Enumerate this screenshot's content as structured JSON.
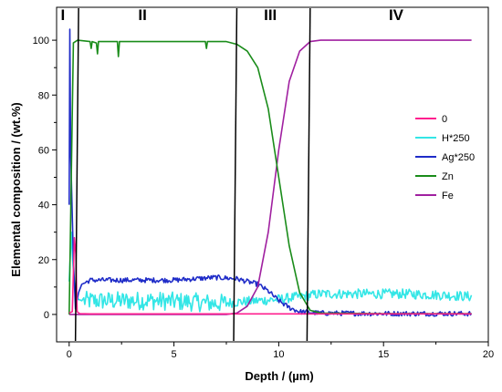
{
  "chart_data": {
    "type": "line",
    "title": "",
    "xlabel": "Depth / (µm)",
    "ylabel": "Elemental composition / (wt.%)",
    "xlim": [
      -0.6,
      20
    ],
    "ylim": [
      -10,
      112
    ],
    "xticks": [
      0,
      5,
      10,
      15,
      20
    ],
    "yticks": [
      0,
      20,
      40,
      60,
      80,
      100
    ],
    "grid": false,
    "legend_position": "right",
    "region_labels": [
      {
        "label": "I",
        "x": -0.3
      },
      {
        "label": "II",
        "x": 3.5
      },
      {
        "label": "III",
        "x": 9.6
      },
      {
        "label": "IV",
        "x": 15.6
      }
    ],
    "boundary_lines": [
      {
        "x1": 0.3,
        "x2": 0.45
      },
      {
        "x1": 7.85,
        "x2": 8.0
      },
      {
        "x1": 11.35,
        "x2": 11.5
      }
    ],
    "series": [
      {
        "name": "0",
        "color": "#ff1f8e",
        "points": [
          [
            0.0,
            0.5
          ],
          [
            0.15,
            1
          ],
          [
            0.25,
            28
          ],
          [
            0.32,
            22
          ],
          [
            0.38,
            1
          ],
          [
            0.5,
            0.3
          ],
          [
            1,
            0.2
          ],
          [
            5,
            0.2
          ],
          [
            10,
            0.2
          ],
          [
            15,
            0.2
          ],
          [
            19.2,
            0.2
          ]
        ]
      },
      {
        "name": "H*250",
        "color": "#33e6e6",
        "noise": true,
        "points": [
          [
            0.0,
            12
          ],
          [
            0.1,
            30
          ],
          [
            0.18,
            18
          ],
          [
            0.3,
            6
          ],
          [
            0.6,
            5
          ],
          [
            2,
            5
          ],
          [
            4,
            5
          ],
          [
            6,
            4.5
          ],
          [
            7,
            4
          ],
          [
            8,
            4.5
          ],
          [
            9,
            5
          ],
          [
            10,
            5.5
          ],
          [
            11,
            6.5
          ],
          [
            12,
            7.5
          ],
          [
            14,
            7.5
          ],
          [
            16,
            7.5
          ],
          [
            18,
            7
          ],
          [
            19.2,
            6.5
          ]
        ]
      },
      {
        "name": "Ag*250",
        "color": "#1f2cc8",
        "noise": true,
        "points": [
          [
            0.0,
            40
          ],
          [
            0.03,
            104
          ],
          [
            0.07,
            60
          ],
          [
            0.12,
            45
          ],
          [
            0.2,
            20
          ],
          [
            0.3,
            2
          ],
          [
            0.45,
            8
          ],
          [
            0.6,
            11
          ],
          [
            1,
            12.5
          ],
          [
            3,
            12.5
          ],
          [
            5,
            12.5
          ],
          [
            7,
            13.5
          ],
          [
            8,
            13
          ],
          [
            9,
            11
          ],
          [
            9.5,
            8.5
          ],
          [
            10,
            5
          ],
          [
            10.5,
            2.5
          ],
          [
            11,
            1
          ],
          [
            12,
            0.5
          ],
          [
            15,
            0.3
          ],
          [
            19.2,
            0.3
          ]
        ]
      },
      {
        "name": "Zn",
        "color": "#1a8c1a",
        "points": [
          [
            0.0,
            0
          ],
          [
            0.1,
            50
          ],
          [
            0.2,
            99
          ],
          [
            0.4,
            100
          ],
          [
            1,
            99.5
          ],
          [
            1.05,
            97
          ],
          [
            1.1,
            99.5
          ],
          [
            1.3,
            99
          ],
          [
            1.35,
            95
          ],
          [
            1.4,
            99.5
          ],
          [
            2.3,
            99.5
          ],
          [
            2.35,
            94
          ],
          [
            2.4,
            99.5
          ],
          [
            3,
            99.5
          ],
          [
            4,
            99.5
          ],
          [
            5,
            99.5
          ],
          [
            6.5,
            99.5
          ],
          [
            6.55,
            97
          ],
          [
            6.6,
            99.5
          ],
          [
            7.5,
            99.5
          ],
          [
            8,
            98.5
          ],
          [
            8.5,
            96
          ],
          [
            9,
            90
          ],
          [
            9.5,
            75
          ],
          [
            10,
            50
          ],
          [
            10.5,
            25
          ],
          [
            11,
            8
          ],
          [
            11.5,
            1.5
          ],
          [
            12,
            0.5
          ],
          [
            15,
            0.3
          ],
          [
            19.2,
            0.3
          ]
        ]
      },
      {
        "name": "Fe",
        "color": "#a020a0",
        "points": [
          [
            0.0,
            0
          ],
          [
            5,
            0
          ],
          [
            7.5,
            0
          ],
          [
            8,
            0.5
          ],
          [
            8.5,
            3
          ],
          [
            9,
            10
          ],
          [
            9.5,
            30
          ],
          [
            10,
            60
          ],
          [
            10.5,
            85
          ],
          [
            11,
            96
          ],
          [
            11.5,
            99.5
          ],
          [
            12,
            100
          ],
          [
            15,
            100
          ],
          [
            19.2,
            100
          ]
        ]
      }
    ]
  }
}
